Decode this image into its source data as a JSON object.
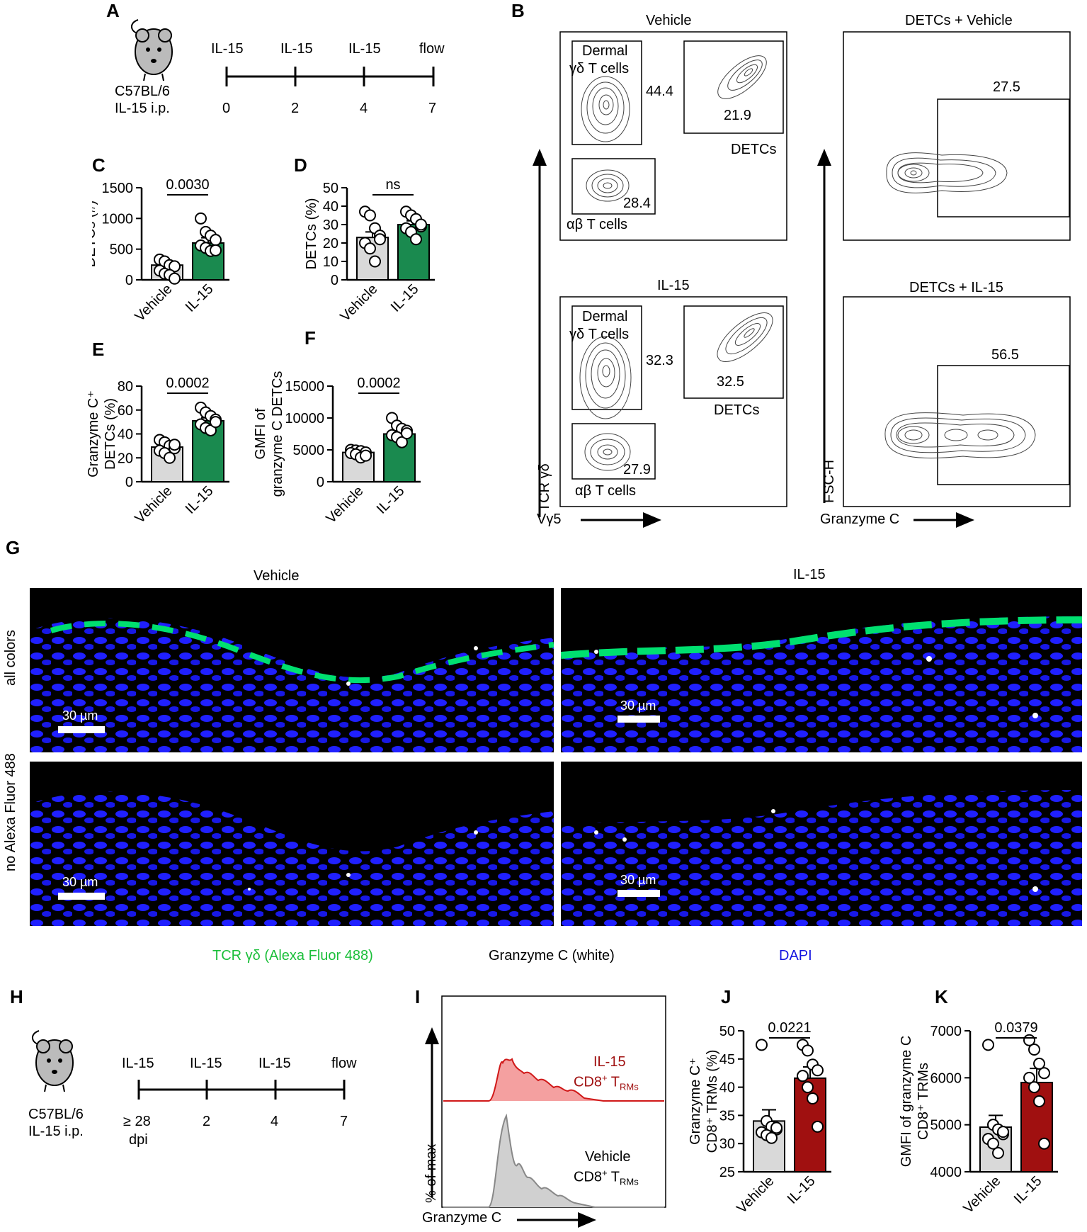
{
  "panel_labels": {
    "A": "A",
    "B": "B",
    "C": "C",
    "D": "D",
    "E": "E",
    "F": "F",
    "G": "G",
    "H": "H",
    "I": "I",
    "J": "J",
    "K": "K"
  },
  "timeline_A": {
    "strain": "C57BL/6",
    "treatment": "IL-15 i.p.",
    "events": [
      "IL-15",
      "IL-15",
      "IL-15",
      "flow"
    ],
    "days": [
      "0",
      "2",
      "4",
      "7"
    ]
  },
  "timeline_H": {
    "strain": "C57BL/6",
    "treatment": "IL-15 i.p.",
    "events": [
      "IL-15",
      "IL-15",
      "IL-15",
      "flow"
    ],
    "days": [
      "≥ 28",
      "2",
      "4",
      "7"
    ],
    "day0_unit": "dpi"
  },
  "flow_B": {
    "y_axis": "TCR γδ",
    "x_axis": "Vγ5",
    "vehicle": {
      "title": "Vehicle",
      "dermal_label_1": "Dermal",
      "dermal_label_2": "γδ T cells",
      "dermal_pct": "44.4",
      "detc_pct": "21.9",
      "detc_label": "DETCs",
      "ab_pct": "28.4",
      "ab_label": "αβ T cells"
    },
    "il15": {
      "title": "IL-15",
      "dermal_label_1": "Dermal",
      "dermal_label_2": "γδ T cells",
      "dermal_pct": "32.3",
      "detc_pct": "32.5",
      "detc_label": "DETCs",
      "ab_pct": "27.9",
      "ab_label": "αβ T cells"
    },
    "gzm_y_axis": "FSC-H",
    "gzm_x_axis": "Granzyme C",
    "gzm_vehicle": {
      "title": "DETCs + Vehicle",
      "pct": "27.5"
    },
    "gzm_il15": {
      "title": "DETCs + IL-15",
      "pct": "56.5"
    }
  },
  "panel_G": {
    "col_titles": [
      "Vehicle",
      "IL-15"
    ],
    "row_titles": [
      "all colors",
      "no Alexa Fluor 488"
    ],
    "scale": "30 µm",
    "legend": {
      "green": "TCR γδ (Alexa Fluor 488)",
      "white": "Granzyme C  (white)",
      "blue": "DAPI"
    }
  },
  "panel_I": {
    "y_axis": "% of max",
    "x_axis": "Granzyme C",
    "il15_label": "IL-15",
    "vehicle_label": "Vehicle",
    "cell_label": "CD8",
    "cell_sup": "+",
    "cell_main": " T",
    "cell_sub": "RMs"
  },
  "colors": {
    "vehicle": "#d9d9d9",
    "il15_green": "#1a8a4f",
    "il15_red": "#a01010",
    "stain_green": "#00d060",
    "stain_blue": "#1515e0"
  },
  "chart_data": [
    {
      "id": "C",
      "type": "bar",
      "ylabel": "DETCs (#)",
      "categories": [
        "Vehicle",
        "IL-15"
      ],
      "values": [
        240,
        600
      ],
      "error": [
        50,
        85
      ],
      "ylim": [
        0,
        1500
      ],
      "yticks": [
        0,
        500,
        1000,
        1500
      ],
      "points": [
        [
          330,
          300,
          240,
          220,
          150,
          100,
          80,
          20
        ],
        [
          1000,
          780,
          720,
          650,
          560,
          520,
          470,
          480
        ]
      ],
      "pvalue": "0.0030"
    },
    {
      "id": "D",
      "type": "bar",
      "ylabel": "DETCs (%)",
      "categories": [
        "Vehicle",
        "IL-15"
      ],
      "values": [
        23,
        30
      ],
      "error": [
        3,
        2
      ],
      "ylim": [
        0,
        50
      ],
      "yticks": [
        0,
        10,
        20,
        30,
        40,
        50
      ],
      "points": [
        [
          37,
          35,
          28,
          24,
          20,
          17,
          10,
          22
        ],
        [
          37,
          35,
          33,
          29,
          28,
          26,
          22,
          30
        ]
      ],
      "pvalue": "ns"
    },
    {
      "id": "E",
      "type": "bar",
      "ylabel": "Granzyme C⁺ DETCs (%)",
      "categories": [
        "Vehicle",
        "IL-15"
      ],
      "values": [
        29,
        51
      ],
      "error": [
        2.5,
        2.5
      ],
      "ylim": [
        0,
        80
      ],
      "yticks": [
        0,
        20,
        40,
        60,
        80
      ],
      "points": [
        [
          35,
          33,
          30,
          28,
          26,
          24,
          20,
          31
        ],
        [
          62,
          58,
          55,
          52,
          48,
          45,
          43,
          50
        ]
      ],
      "pvalue": "0.0002"
    },
    {
      "id": "F",
      "type": "bar",
      "ylabel": "GMFI of granzyme C DETCs",
      "categories": [
        "Vehicle",
        "IL-15"
      ],
      "values": [
        4600,
        7500
      ],
      "error": [
        300,
        450
      ],
      "ylim": [
        0,
        15000
      ],
      "yticks": [
        0,
        5000,
        10000,
        15000
      ],
      "points": [
        [
          5000,
          4900,
          4800,
          4600,
          4500,
          4300,
          3800,
          4100
        ],
        [
          10000,
          8800,
          8300,
          8000,
          7300,
          7000,
          6200,
          7600
        ]
      ],
      "pvalue": "0.0002"
    },
    {
      "id": "J",
      "type": "bar",
      "ylabel": "Granzyme C⁺ CD8⁺ T_RMs (%)",
      "categories": [
        "Vehicle",
        "IL-15"
      ],
      "values": [
        34,
        41.6
      ],
      "error": [
        2,
        2
      ],
      "ylim": [
        25,
        50
      ],
      "yticks": [
        25,
        30,
        35,
        40,
        45,
        50
      ],
      "points": [
        [
          47.5,
          34,
          33,
          32.5,
          32,
          31.5,
          31,
          32.8
        ],
        [
          47.5,
          46.5,
          44,
          43,
          42,
          40,
          38,
          33
        ]
      ],
      "pvalue": "0.0221"
    },
    {
      "id": "K",
      "type": "bar",
      "ylabel": "GMFI of granzyme C CD8⁺ T_RMs",
      "categories": [
        "Vehicle",
        "IL-15"
      ],
      "values": [
        4950,
        5900
      ],
      "error": [
        250,
        300
      ],
      "ylim": [
        4000,
        7000
      ],
      "yticks": [
        4000,
        5000,
        6000,
        7000
      ],
      "points": [
        [
          6700,
          5000,
          4900,
          4800,
          4700,
          4600,
          4400,
          4850
        ],
        [
          6800,
          6600,
          6300,
          6100,
          6000,
          5800,
          5500,
          4600
        ]
      ],
      "pvalue": "0.0379"
    }
  ]
}
